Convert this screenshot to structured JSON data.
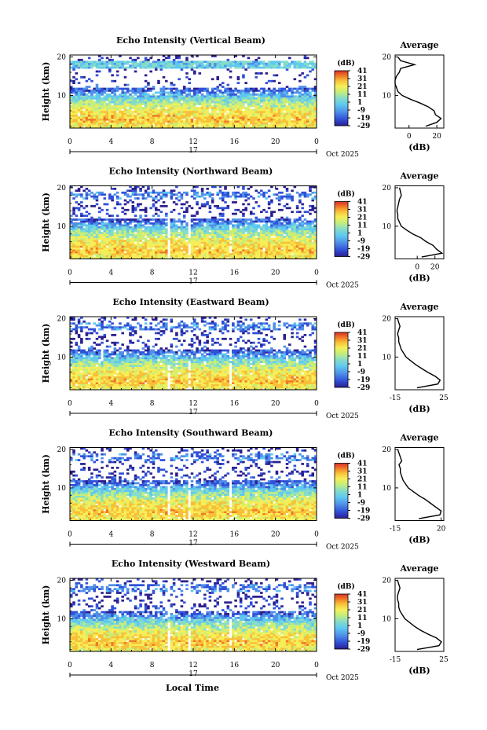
{
  "figure": {
    "xlabel": "Local Time",
    "date_day": "17",
    "date_month": "Oct 2025"
  },
  "chart_data": [
    {
      "type": "heatmap",
      "title": "Echo Intensity (Vertical Beam)",
      "xlabel": "Local Time",
      "ylabel": "Height (km)",
      "x_ticks": [
        "0",
        "4",
        "8",
        "12",
        "16",
        "20",
        "0"
      ],
      "y_ticks": [
        "10",
        "20"
      ],
      "xlim_hours": [
        0,
        24
      ],
      "ylim_km": [
        1.5,
        20.5
      ],
      "colorbar": {
        "label": "(dB)",
        "ticks": [
          "41",
          "31",
          "21",
          "11",
          "1",
          "-9",
          "-19",
          "-29"
        ],
        "range": [
          -29,
          41
        ]
      },
      "profile": {
        "title": "Average",
        "xlabel": "(dB)",
        "x_ticks": [
          "0",
          "20"
        ],
        "y_ticks": [
          "10",
          "20"
        ],
        "xlim": [
          -10,
          25
        ],
        "height_km": [
          2,
          3,
          4,
          5,
          6,
          7,
          8,
          9,
          10,
          11,
          12,
          13,
          14,
          15,
          16,
          17,
          18,
          19,
          20
        ],
        "mean_db": [
          12,
          20,
          23,
          19,
          18,
          14,
          8,
          1,
          -5,
          -8,
          -9,
          -10,
          -10,
          -9,
          -7,
          -6,
          4,
          -6,
          -8
        ]
      }
    },
    {
      "type": "heatmap",
      "title": "Echo Intensity (Northward Beam)",
      "xlabel": "Local Time",
      "ylabel": "Height (km)",
      "x_ticks": [
        "0",
        "4",
        "8",
        "12",
        "16",
        "20",
        "0"
      ],
      "y_ticks": [
        "10",
        "20"
      ],
      "xlim_hours": [
        0,
        24
      ],
      "ylim_km": [
        1.5,
        20.5
      ],
      "colorbar": {
        "label": "(dB)",
        "ticks": [
          "41",
          "31",
          "21",
          "11",
          "1",
          "-9",
          "-19",
          "-29"
        ],
        "range": [
          -29,
          41
        ]
      },
      "profile": {
        "title": "Average",
        "xlabel": "(dB)",
        "x_ticks": [
          "0",
          "20"
        ],
        "y_ticks": [
          "10",
          "20"
        ],
        "xlim": [
          -25,
          30
        ],
        "height_km": [
          2,
          3,
          4,
          5,
          6,
          7,
          8,
          9,
          10,
          11,
          12,
          13,
          14,
          15,
          16,
          17,
          18,
          19,
          20
        ],
        "mean_db": [
          5,
          28,
          22,
          18,
          10,
          4,
          -5,
          -12,
          -18,
          -20,
          -22,
          -22,
          -23,
          -22,
          -21,
          -20,
          -18,
          -19,
          -20
        ]
      }
    },
    {
      "type": "heatmap",
      "title": "Echo Intensity (Eastward Beam)",
      "xlabel": "Local Time",
      "ylabel": "Height (km)",
      "x_ticks": [
        "0",
        "4",
        "8",
        "12",
        "16",
        "20",
        "0"
      ],
      "y_ticks": [
        "10",
        "20"
      ],
      "xlim_hours": [
        0,
        24
      ],
      "ylim_km": [
        1.5,
        20.5
      ],
      "colorbar": {
        "label": "(dB)",
        "ticks": [
          "41",
          "31",
          "21",
          "11",
          "1",
          "-9",
          "-19",
          "-29"
        ],
        "range": [
          -29,
          41
        ]
      },
      "profile": {
        "title": "Average",
        "xlabel": "(dB)",
        "x_ticks": [
          "-15",
          "25"
        ],
        "y_ticks": [
          "10",
          "20"
        ],
        "xlim": [
          -15,
          25
        ],
        "height_km": [
          2,
          3,
          4,
          5,
          6,
          7,
          8,
          9,
          10,
          11,
          12,
          13,
          14,
          15,
          16,
          17,
          18,
          19,
          20
        ],
        "mean_db": [
          3,
          20,
          22,
          18,
          12,
          7,
          2,
          -2,
          -6,
          -8,
          -10,
          -11,
          -12,
          -12,
          -13,
          -12,
          -11,
          -12,
          -13
        ]
      }
    },
    {
      "type": "heatmap",
      "title": "Echo Intensity (Southward Beam)",
      "xlabel": "Local Time",
      "ylabel": "Height (km)",
      "x_ticks": [
        "0",
        "4",
        "8",
        "12",
        "16",
        "20",
        "0"
      ],
      "y_ticks": [
        "10",
        "20"
      ],
      "xlim_hours": [
        0,
        24
      ],
      "ylim_km": [
        1.5,
        20.5
      ],
      "colorbar": {
        "label": "(dB)",
        "ticks": [
          "41",
          "31",
          "21",
          "11",
          "1",
          "-9",
          "-19",
          "-29"
        ],
        "range": [
          -29,
          41
        ]
      },
      "profile": {
        "title": "Average",
        "xlabel": "(dB)",
        "x_ticks": [
          "-15",
          "20"
        ],
        "y_ticks": [
          "10",
          "20"
        ],
        "xlim": [
          -15,
          22
        ],
        "height_km": [
          2,
          3,
          4,
          5,
          6,
          7,
          8,
          9,
          10,
          11,
          12,
          13,
          14,
          15,
          16,
          17,
          18,
          19,
          20
        ],
        "mean_db": [
          3,
          19,
          20,
          16,
          12,
          8,
          3,
          -1,
          -5,
          -7,
          -9,
          -10,
          -11,
          -11,
          -12,
          -10,
          -11,
          -12,
          -13
        ]
      }
    },
    {
      "type": "heatmap",
      "title": "Echo Intensity (Westward Beam)",
      "xlabel": "Local Time",
      "ylabel": "Height (km)",
      "x_ticks": [
        "0",
        "4",
        "8",
        "12",
        "16",
        "20",
        "0"
      ],
      "y_ticks": [
        "10",
        "20"
      ],
      "xlim_hours": [
        0,
        24
      ],
      "ylim_km": [
        1.5,
        20.5
      ],
      "colorbar": {
        "label": "(dB)",
        "ticks": [
          "41",
          "31",
          "21",
          "11",
          "1",
          "-9",
          "-19",
          "-29"
        ],
        "range": [
          -29,
          41
        ]
      },
      "profile": {
        "title": "Average",
        "xlabel": "(dB)",
        "x_ticks": [
          "-15",
          "25"
        ],
        "y_ticks": [
          "10",
          "20"
        ],
        "xlim": [
          -15,
          25
        ],
        "height_km": [
          2,
          3,
          4,
          5,
          6,
          7,
          8,
          9,
          10,
          11,
          12,
          13,
          14,
          15,
          16,
          17,
          18,
          19,
          20
        ],
        "mean_db": [
          3,
          21,
          23,
          19,
          12,
          6,
          1,
          -3,
          -7,
          -9,
          -11,
          -12,
          -12,
          -13,
          -13,
          -12,
          -11,
          -12,
          -13
        ]
      }
    }
  ],
  "colors": {
    "colormap": [
      "#2b1f8f",
      "#3050d8",
      "#4f8fe8",
      "#5ec8f0",
      "#86dcc8",
      "#c8ee78",
      "#f6ee58",
      "#f8c038",
      "#f07828",
      "#d83028"
    ]
  }
}
